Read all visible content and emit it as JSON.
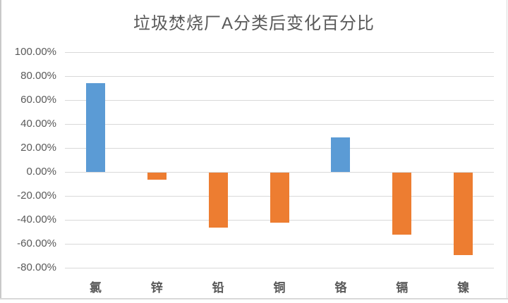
{
  "chart_data": {
    "type": "bar",
    "title": "垃圾焚烧厂A分类后变化百分比",
    "categories": [
      "氯",
      "锌",
      "铅",
      "铜",
      "铬",
      "镉",
      "镍"
    ],
    "values": [
      74,
      -6,
      -46,
      -42,
      29,
      -52,
      -69
    ],
    "value_unit": "%",
    "series_note": "single series; bars colored by sign",
    "ytick_labels": [
      "100.00%",
      "80.00%",
      "60.00%",
      "40.00%",
      "20.00%",
      "0.00%",
      "-20.00%",
      "-40.00%",
      "-60.00%",
      "-80.00%"
    ],
    "ylim": [
      -80,
      100
    ],
    "ytick_step": 20,
    "xlabel": "",
    "ylabel": "",
    "grid": true,
    "legend_position": "none",
    "colors": {
      "positive_bar": "#5B9BD5",
      "negative_bar": "#ED7D31",
      "gridline": "#D9D9D9",
      "text": "#595959"
    }
  }
}
